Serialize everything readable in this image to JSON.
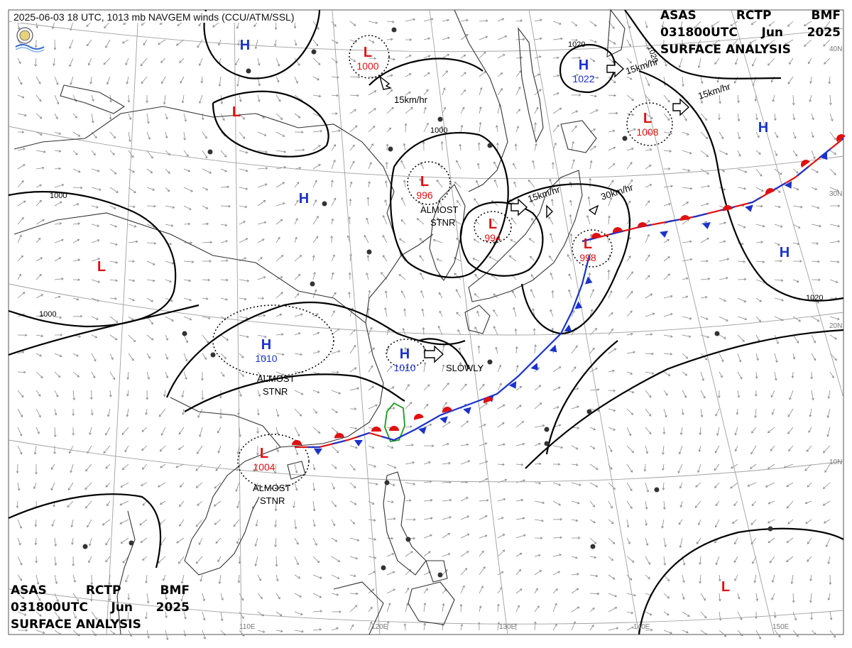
{
  "header": {
    "caption": "2025-06-03 18 UTC, 1013 mb NAVGEM winds (CCU/ATM/SSL)"
  },
  "title_block": {
    "line1": [
      "ASAS",
      "RCTP",
      "BMF"
    ],
    "line2": [
      "031800UTC",
      "Jun",
      "2025"
    ],
    "line3": "SURFACE ANALYSIS"
  },
  "longitude_labels": [
    "110E",
    "120E",
    "130E",
    "140E",
    "150E"
  ],
  "latitude_labels": [
    "40N",
    "30N",
    "20N",
    "10N"
  ],
  "pressure_systems": [
    {
      "type": "H",
      "value": "",
      "color": "#1a33cc"
    },
    {
      "type": "L",
      "value": "1000",
      "color": "#e01010"
    },
    {
      "type": "H",
      "value": "1022",
      "color": "#1a33cc"
    },
    {
      "type": "L",
      "value": "",
      "color": "#e01010"
    },
    {
      "type": "L",
      "value": "1008",
      "color": "#e01010"
    },
    {
      "type": "H",
      "value": "",
      "color": "#1a33cc"
    },
    {
      "type": "L",
      "value": "996",
      "color": "#e01010"
    },
    {
      "type": "H",
      "value": "",
      "color": "#1a33cc"
    },
    {
      "type": "L",
      "value": "994",
      "color": "#e01010"
    },
    {
      "type": "L",
      "value": "",
      "color": "#e01010"
    },
    {
      "type": "L",
      "value": "998",
      "color": "#e01010"
    },
    {
      "type": "H",
      "value": "",
      "color": "#1a33cc"
    },
    {
      "type": "H",
      "value": "1010",
      "color": "#1a33cc"
    },
    {
      "type": "H",
      "value": "1010",
      "color": "#1a33cc"
    },
    {
      "type": "L",
      "value": "1004",
      "color": "#e01010"
    },
    {
      "type": "L",
      "value": "",
      "color": "#e01010"
    }
  ],
  "isobar_labels": [
    "1000",
    "1000",
    "1000",
    "1020",
    "1020",
    "1020"
  ],
  "annotations": {
    "movement_1": "15km/hr",
    "movement_2": "15km/hr",
    "movement_3": "15km/hr",
    "movement_4": "15km/hr",
    "movement_5": "30km/hr",
    "stationary_1": "ALMOST",
    "stationary_1b": "STNR",
    "stationary_2": "ALMOST",
    "stationary_2b": "STNR",
    "stationary_3": "ALMOST",
    "stationary_3b": "STNR",
    "slowly": "SLOWLY"
  },
  "colors": {
    "low": "#e01010",
    "high": "#1a33cc",
    "warm_front": "#e01010",
    "cold_front": "#1a33cc",
    "isobar": "#000000",
    "coast": "#333333",
    "grid": "#9a9a9a",
    "wind": "#8a8a8a",
    "taiwan_outline": "#1a9a1a"
  }
}
